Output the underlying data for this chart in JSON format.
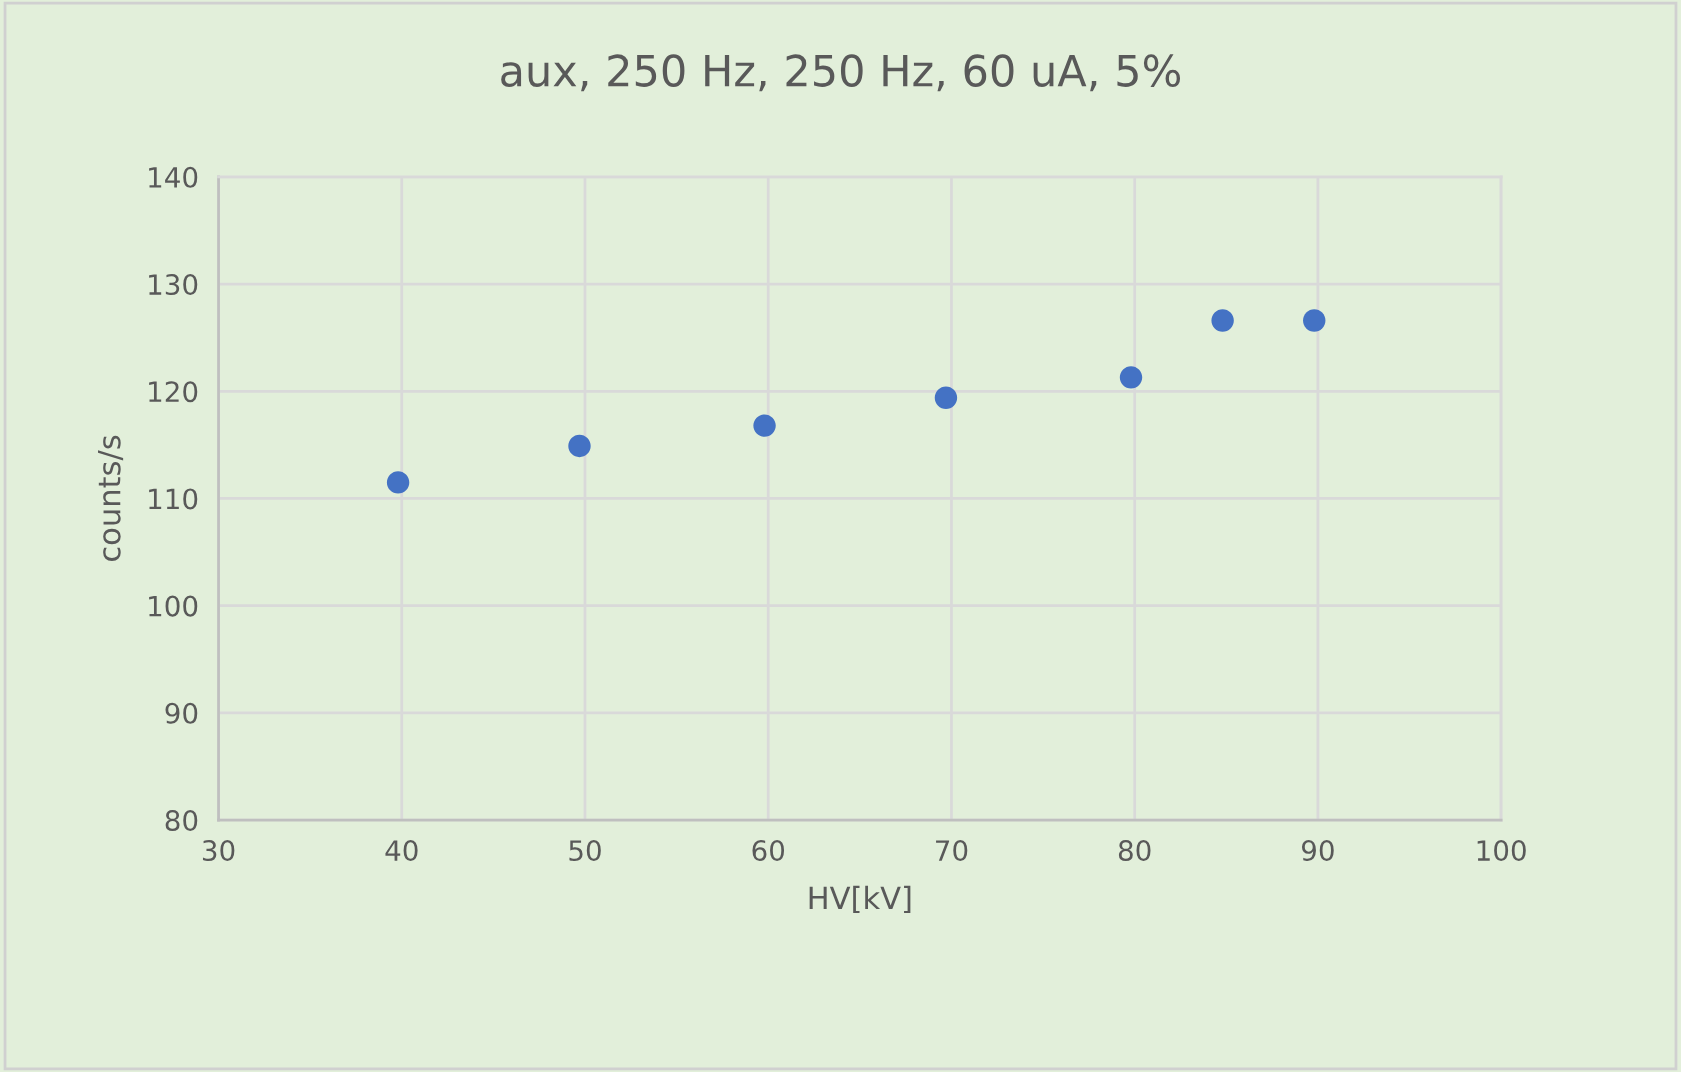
{
  "chart_data": {
    "type": "scatter",
    "title": "aux, 250 Hz, 250 Hz, 60 uA, 5%",
    "xlabel": "HV[kV]",
    "ylabel": "counts/s",
    "x": [
      39.8,
      49.7,
      59.8,
      69.7,
      79.8,
      84.8,
      89.8
    ],
    "series": [
      {
        "color": "#4472c4",
        "values": [
          111.5,
          114.9,
          116.8,
          119.4,
          121.3,
          126.6,
          126.6
        ]
      }
    ],
    "xlim": [
      30,
      100
    ],
    "xticks": [
      30,
      40,
      50,
      60,
      70,
      80,
      90,
      100
    ],
    "ylim": [
      80,
      140
    ],
    "yticks": [
      80,
      90,
      100,
      110,
      120,
      130,
      140
    ],
    "grid": true,
    "marker": "circle",
    "legend": false
  }
}
